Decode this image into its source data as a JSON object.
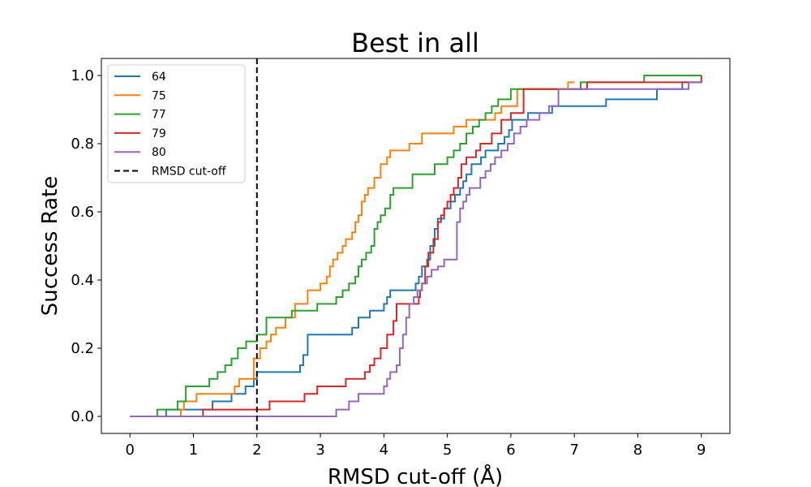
{
  "chart_data": {
    "type": "line",
    "title": "Best in all",
    "xlabel": "RMSD cut-off (Å)",
    "ylabel": "Success Rate",
    "xlim": [
      -0.45,
      9.45
    ],
    "ylim": [
      -0.05,
      1.05
    ],
    "xticks": [
      0,
      1,
      2,
      3,
      4,
      5,
      6,
      7,
      8,
      9
    ],
    "yticks": [
      0.0,
      0.2,
      0.4,
      0.6,
      0.8,
      1.0
    ],
    "xtick_labels": [
      "0",
      "1",
      "2",
      "3",
      "4",
      "5",
      "6",
      "7",
      "8",
      "9"
    ],
    "ytick_labels": [
      "0.0",
      "0.2",
      "0.4",
      "0.6",
      "0.8",
      "1.0"
    ],
    "grid": false,
    "legend_position": "top-left",
    "step": "post",
    "series": [
      {
        "name": "64",
        "color": "#1f77b4",
        "x": [
          0,
          0.57,
          1.3,
          1.6,
          1.82,
          1.95,
          2.0,
          2.5,
          2.68,
          2.73,
          2.8,
          3.45,
          3.5,
          3.6,
          3.78,
          4.0,
          4.05,
          4.1,
          4.5,
          4.55,
          4.6,
          4.68,
          4.73,
          4.8,
          4.85,
          4.95,
          5.05,
          5.12,
          5.2,
          5.25,
          5.3,
          5.38,
          5.45,
          5.53,
          5.6,
          5.8,
          5.9,
          5.97,
          6.02,
          6.1,
          6.18,
          6.27,
          6.33,
          6.4,
          6.65,
          7.5,
          8.3,
          8.7,
          9.0
        ],
        "y": [
          0.0,
          0.02,
          0.044,
          0.066,
          0.088,
          0.11,
          0.13,
          0.13,
          0.15,
          0.18,
          0.24,
          0.24,
          0.26,
          0.29,
          0.31,
          0.33,
          0.35,
          0.37,
          0.39,
          0.41,
          0.44,
          0.46,
          0.5,
          0.55,
          0.58,
          0.61,
          0.63,
          0.65,
          0.67,
          0.69,
          0.71,
          0.74,
          0.74,
          0.76,
          0.78,
          0.8,
          0.82,
          0.84,
          0.87,
          0.87,
          0.87,
          0.89,
          0.89,
          0.89,
          0.91,
          0.93,
          0.96,
          0.98,
          0.98
        ]
      },
      {
        "name": "75",
        "color": "#ff7f0e",
        "x": [
          0,
          0.8,
          0.85,
          1.05,
          1.25,
          1.65,
          1.72,
          1.82,
          1.95,
          2.05,
          2.15,
          2.22,
          2.3,
          2.45,
          2.6,
          2.8,
          3.0,
          3.1,
          3.15,
          3.2,
          3.27,
          3.35,
          3.4,
          3.5,
          3.55,
          3.6,
          3.65,
          3.7,
          3.75,
          3.8,
          3.85,
          3.95,
          4.05,
          4.1,
          4.2,
          4.4,
          4.6,
          4.85,
          5.1,
          5.2,
          5.3,
          5.45,
          5.6,
          5.75,
          5.85,
          5.95,
          6.1,
          6.3,
          6.9,
          7.0
        ],
        "y": [
          0.0,
          0.02,
          0.044,
          0.066,
          0.066,
          0.088,
          0.11,
          0.11,
          0.17,
          0.2,
          0.22,
          0.24,
          0.26,
          0.29,
          0.33,
          0.37,
          0.39,
          0.41,
          0.44,
          0.46,
          0.48,
          0.5,
          0.52,
          0.54,
          0.57,
          0.59,
          0.63,
          0.65,
          0.67,
          0.67,
          0.7,
          0.74,
          0.76,
          0.78,
          0.78,
          0.8,
          0.83,
          0.83,
          0.85,
          0.85,
          0.87,
          0.87,
          0.87,
          0.89,
          0.91,
          0.91,
          0.96,
          0.96,
          0.98,
          0.98
        ]
      },
      {
        "name": "77",
        "color": "#2ca02c",
        "x": [
          0,
          0.43,
          0.75,
          0.88,
          1.12,
          1.25,
          1.38,
          1.5,
          1.6,
          1.7,
          1.83,
          2.0,
          2.15,
          2.35,
          2.55,
          2.65,
          2.75,
          2.85,
          2.95,
          3.2,
          3.25,
          3.35,
          3.45,
          3.55,
          3.6,
          3.65,
          3.72,
          3.8,
          3.85,
          3.9,
          3.95,
          4.02,
          4.1,
          4.15,
          4.45,
          4.65,
          4.8,
          5.0,
          5.1,
          5.2,
          5.3,
          5.4,
          5.5,
          5.6,
          5.7,
          5.8,
          6.0,
          6.4,
          7.1,
          8.1,
          8.5,
          9.0
        ],
        "y": [
          0.0,
          0.02,
          0.044,
          0.088,
          0.088,
          0.11,
          0.13,
          0.15,
          0.17,
          0.2,
          0.22,
          0.24,
          0.29,
          0.29,
          0.31,
          0.31,
          0.31,
          0.31,
          0.33,
          0.33,
          0.35,
          0.37,
          0.39,
          0.41,
          0.44,
          0.46,
          0.48,
          0.5,
          0.55,
          0.57,
          0.59,
          0.61,
          0.65,
          0.67,
          0.71,
          0.71,
          0.74,
          0.76,
          0.78,
          0.8,
          0.83,
          0.85,
          0.87,
          0.89,
          0.91,
          0.93,
          0.96,
          0.96,
          0.98,
          1.0,
          1.0,
          1.0
        ]
      },
      {
        "name": "79",
        "color": "#d62728",
        "x": [
          0,
          1.15,
          2.2,
          2.75,
          2.95,
          3.4,
          3.7,
          3.78,
          3.85,
          3.95,
          4.05,
          4.15,
          4.2,
          4.55,
          4.57,
          4.6,
          4.65,
          4.7,
          4.78,
          4.85,
          4.9,
          4.95,
          5.0,
          5.05,
          5.1,
          5.17,
          5.22,
          5.3,
          5.35,
          5.45,
          5.52,
          5.6,
          5.7,
          5.85,
          6.0,
          6.2,
          6.6,
          7.2,
          9.0
        ],
        "y": [
          0.0,
          0.02,
          0.044,
          0.066,
          0.088,
          0.11,
          0.13,
          0.15,
          0.17,
          0.2,
          0.24,
          0.28,
          0.33,
          0.35,
          0.37,
          0.39,
          0.44,
          0.48,
          0.52,
          0.57,
          0.59,
          0.61,
          0.63,
          0.65,
          0.67,
          0.7,
          0.74,
          0.76,
          0.76,
          0.78,
          0.8,
          0.8,
          0.83,
          0.87,
          0.89,
          0.96,
          0.96,
          0.98,
          1.0
        ]
      },
      {
        "name": "80",
        "color": "#9467bd",
        "x": [
          0,
          3.25,
          3.45,
          3.6,
          4.0,
          4.05,
          4.1,
          4.2,
          4.25,
          4.3,
          4.35,
          4.4,
          4.47,
          4.53,
          4.6,
          4.68,
          4.75,
          4.85,
          4.95,
          5.05,
          5.15,
          5.2,
          5.25,
          5.3,
          5.35,
          5.45,
          5.52,
          5.6,
          5.68,
          5.75,
          5.85,
          5.95,
          6.05,
          6.15,
          6.25,
          6.45,
          6.6,
          6.75,
          7.3,
          8.8,
          9.0
        ],
        "y": [
          0.0,
          0.02,
          0.044,
          0.066,
          0.088,
          0.11,
          0.13,
          0.15,
          0.2,
          0.24,
          0.29,
          0.33,
          0.35,
          0.37,
          0.39,
          0.41,
          0.43,
          0.44,
          0.46,
          0.46,
          0.57,
          0.61,
          0.63,
          0.65,
          0.67,
          0.67,
          0.7,
          0.72,
          0.74,
          0.76,
          0.78,
          0.8,
          0.83,
          0.85,
          0.87,
          0.89,
          0.91,
          0.96,
          0.96,
          0.98,
          0.98
        ]
      }
    ],
    "reference_lines": [
      {
        "name": "RMSD cut-off",
        "orientation": "vertical",
        "x": 2,
        "color": "#000000",
        "style": "dashed"
      }
    ]
  }
}
